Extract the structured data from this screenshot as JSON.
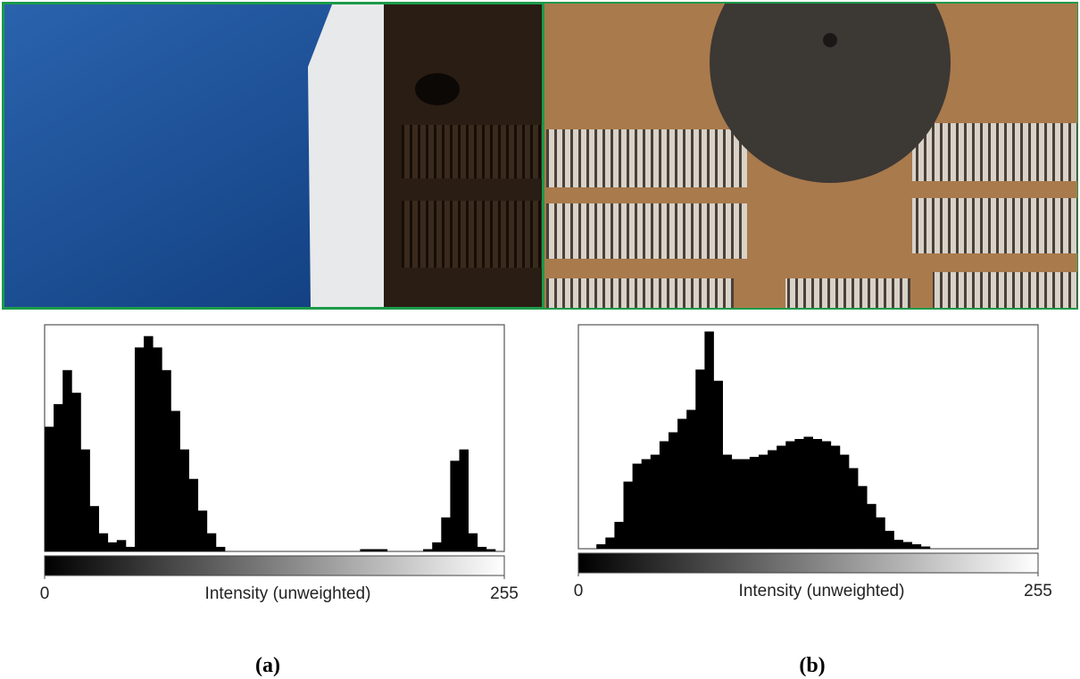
{
  "chart_data": [
    {
      "type": "histogram",
      "xlabel": "Intensity (unweighted)",
      "caption": "(a)",
      "color": "#000000",
      "bins": [
        0,
        5,
        10,
        15,
        20,
        25,
        30,
        35,
        40,
        45,
        50,
        55,
        60,
        65,
        70,
        75,
        80,
        85,
        90,
        95,
        100,
        105,
        110,
        115,
        120,
        125,
        130,
        135,
        140,
        145,
        150,
        155,
        160,
        165,
        170,
        175,
        180,
        185,
        190,
        195,
        200,
        205,
        210,
        215,
        220,
        225,
        230,
        235,
        240,
        245,
        250,
        255
      ],
      "counts": [
        55,
        65,
        80,
        70,
        45,
        20,
        8,
        4,
        5,
        2,
        90,
        95,
        90,
        80,
        62,
        45,
        32,
        18,
        8,
        2,
        0,
        0,
        0,
        0,
        0,
        0,
        0,
        0,
        0,
        0,
        0,
        0,
        0,
        0,
        0,
        1,
        1,
        1,
        0,
        0,
        0,
        0,
        1,
        4,
        15,
        40,
        45,
        8,
        2,
        1,
        0
      ],
      "xlim": [
        0,
        255
      ],
      "xticks": [
        0,
        255
      ],
      "ylim": [
        0,
        100
      ]
    },
    {
      "type": "histogram",
      "xlabel": "Intensity (unweighted)",
      "caption": "(b)",
      "color": "#000000",
      "bins": [
        0,
        5,
        10,
        15,
        20,
        25,
        30,
        35,
        40,
        45,
        50,
        55,
        60,
        65,
        70,
        75,
        80,
        85,
        90,
        95,
        100,
        105,
        110,
        115,
        120,
        125,
        130,
        135,
        140,
        145,
        150,
        155,
        160,
        165,
        170,
        175,
        180,
        185,
        190,
        195,
        200,
        205,
        210,
        215,
        220,
        225,
        230,
        235,
        240,
        245,
        250,
        255
      ],
      "counts": [
        0,
        0,
        2,
        5,
        12,
        30,
        38,
        40,
        42,
        48,
        52,
        58,
        62,
        80,
        97,
        75,
        42,
        40,
        40,
        41,
        42,
        44,
        46,
        48,
        49,
        50,
        49,
        48,
        46,
        42,
        36,
        28,
        20,
        14,
        8,
        4,
        3,
        2,
        1,
        0,
        0,
        0,
        0,
        0,
        0,
        0,
        0,
        0,
        0,
        0,
        0
      ],
      "xlim": [
        0,
        255
      ],
      "xticks": [
        0,
        255
      ],
      "ylim": [
        0,
        100
      ]
    }
  ]
}
